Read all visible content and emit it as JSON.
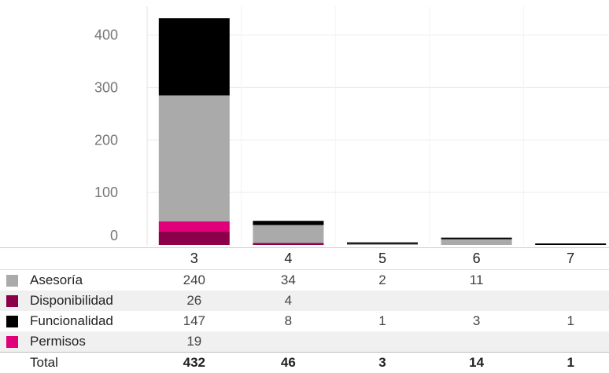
{
  "chart_data": {
    "type": "bar",
    "stacked": true,
    "categories": [
      "3",
      "4",
      "5",
      "6",
      "7"
    ],
    "series": [
      {
        "name": "Asesoría",
        "color": "#aaaaaa",
        "values": [
          240,
          34,
          2,
          11,
          null
        ]
      },
      {
        "name": "Disponibilidad",
        "color": "#8b0049",
        "values": [
          26,
          4,
          null,
          null,
          null
        ]
      },
      {
        "name": "Funcionalidad",
        "color": "#000000",
        "values": [
          147,
          8,
          1,
          3,
          1
        ]
      },
      {
        "name": "Permisos",
        "color": "#e0007a",
        "values": [
          19,
          null,
          null,
          null,
          null
        ]
      }
    ],
    "totals": [
      432,
      46,
      3,
      14,
      1
    ],
    "total_label": "Total",
    "yticks": [
      "0",
      "100",
      "200",
      "300",
      "400"
    ],
    "ylim": [
      0,
      450
    ],
    "grid": true,
    "xlabel": "",
    "ylabel": "",
    "title": ""
  }
}
